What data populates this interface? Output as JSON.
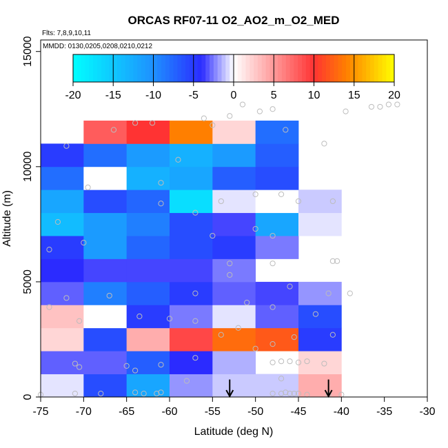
{
  "chart_data": {
    "type": "heatmap",
    "title": "ORCAS RF07-11 O2_AO2_m_O2_MED",
    "notes": [
      "Flts: 7,8,9,10,11",
      "MMDD: 0130,0205,0208,0210,0212"
    ],
    "xlabel": "Latitude (deg N)",
    "ylabel": "Altitude (m)",
    "xlim": [
      -75,
      -30
    ],
    "ylim": [
      0,
      15500
    ],
    "xticks": [
      -75,
      -70,
      -65,
      -60,
      -55,
      -50,
      -45,
      -40,
      -35,
      -30
    ],
    "yticks": [
      0,
      5000,
      10000,
      15000
    ],
    "color_range": [
      -20,
      20
    ],
    "colorbar_ticks": [
      -20,
      -15,
      -10,
      -5,
      0,
      5,
      10,
      15,
      20
    ],
    "colorbar_stops": [
      "#00ffff",
      "#1e90ff",
      "#2b2bff",
      "#ffffff",
      "#ff3333",
      "#ff7f00",
      "#ffff00"
    ],
    "lat_bins": [
      -75,
      -70,
      -65,
      -60,
      -55,
      -50,
      -45,
      -40
    ],
    "alt_bins": [
      0,
      1000,
      2000,
      3000,
      4000,
      5000,
      6000,
      7000,
      8000,
      9000,
      10000,
      11000,
      12000
    ],
    "cells": [
      {
        "lat": -75,
        "alt": 0,
        "value": -0.5
      },
      {
        "lat": -70,
        "alt": 0,
        "value": -6
      },
      {
        "lat": -65,
        "alt": 0,
        "value": -12
      },
      {
        "lat": -60,
        "alt": 0,
        "value": -2
      },
      {
        "lat": -55,
        "alt": 0,
        "value": -1
      },
      {
        "lat": -50,
        "alt": 0,
        "value": -1
      },
      {
        "lat": -45,
        "alt": 0,
        "value": 4
      },
      {
        "lat": -75,
        "alt": 1000,
        "value": -3
      },
      {
        "lat": -70,
        "alt": 1000,
        "value": -3
      },
      {
        "lat": -65,
        "alt": 1000,
        "value": -7
      },
      {
        "lat": -60,
        "alt": 1000,
        "value": -4
      },
      {
        "lat": -55,
        "alt": 1000,
        "value": -1.5
      },
      {
        "lat": -45,
        "alt": 1000,
        "value": 2
      },
      {
        "lat": -75,
        "alt": 2000,
        "value": 2
      },
      {
        "lat": -70,
        "alt": 2000,
        "value": -6
      },
      {
        "lat": -65,
        "alt": 2000,
        "value": 4
      },
      {
        "lat": -60,
        "alt": 2000,
        "value": 9
      },
      {
        "lat": -55,
        "alt": 2000,
        "value": 13
      },
      {
        "lat": -50,
        "alt": 2000,
        "value": 12
      },
      {
        "lat": -45,
        "alt": 2000,
        "value": -5
      },
      {
        "lat": -75,
        "alt": 3000,
        "value": 3
      },
      {
        "lat": -70,
        "alt": 3000,
        "value": 0
      },
      {
        "lat": -65,
        "alt": 3000,
        "value": -5
      },
      {
        "lat": -60,
        "alt": 3000,
        "value": -2.5
      },
      {
        "lat": -55,
        "alt": 3000,
        "value": -0.5
      },
      {
        "lat": -50,
        "alt": 3000,
        "value": -3
      },
      {
        "lat": -45,
        "alt": 3000,
        "value": -6
      },
      {
        "lat": -75,
        "alt": 4000,
        "value": -3
      },
      {
        "lat": -70,
        "alt": 4000,
        "value": -9
      },
      {
        "lat": -65,
        "alt": 4000,
        "value": -7
      },
      {
        "lat": -60,
        "alt": 4000,
        "value": -5
      },
      {
        "lat": -55,
        "alt": 4000,
        "value": -3
      },
      {
        "lat": -50,
        "alt": 4000,
        "value": -3.5
      },
      {
        "lat": -45,
        "alt": 4000,
        "value": -2
      },
      {
        "lat": -75,
        "alt": 5000,
        "value": -4
      },
      {
        "lat": -70,
        "alt": 5000,
        "value": -3.5
      },
      {
        "lat": -65,
        "alt": 5000,
        "value": -3.5
      },
      {
        "lat": -60,
        "alt": 5000,
        "value": -3.5
      },
      {
        "lat": -55,
        "alt": 5000,
        "value": -2.5
      },
      {
        "lat": -75,
        "alt": 6000,
        "value": -5
      },
      {
        "lat": -70,
        "alt": 6000,
        "value": -11
      },
      {
        "lat": -65,
        "alt": 6000,
        "value": -7.5
      },
      {
        "lat": -60,
        "alt": 6000,
        "value": -6
      },
      {
        "lat": -55,
        "alt": 6000,
        "value": -5
      },
      {
        "lat": -50,
        "alt": 6000,
        "value": -2.5
      },
      {
        "lat": -75,
        "alt": 7000,
        "value": -14
      },
      {
        "lat": -70,
        "alt": 7000,
        "value": -11
      },
      {
        "lat": -65,
        "alt": 7000,
        "value": -9
      },
      {
        "lat": -60,
        "alt": 7000,
        "value": -6
      },
      {
        "lat": -55,
        "alt": 7000,
        "value": -3.5
      },
      {
        "lat": -50,
        "alt": 7000,
        "value": -12
      },
      {
        "lat": -45,
        "alt": 7000,
        "value": -0.5
      },
      {
        "lat": -75,
        "alt": 8000,
        "value": -12
      },
      {
        "lat": -70,
        "alt": 8000,
        "value": -6
      },
      {
        "lat": -65,
        "alt": 8000,
        "value": -7.5
      },
      {
        "lat": -60,
        "alt": 8000,
        "value": -17
      },
      {
        "lat": -55,
        "alt": 8000,
        "value": -0.5
      },
      {
        "lat": -50,
        "alt": 8000,
        "value": 0
      },
      {
        "lat": -45,
        "alt": 8000,
        "value": -1
      },
      {
        "lat": -75,
        "alt": 9000,
        "value": -8
      },
      {
        "lat": -70,
        "alt": 9000,
        "value": 0
      },
      {
        "lat": -65,
        "alt": 9000,
        "value": -13
      },
      {
        "lat": -60,
        "alt": 9000,
        "value": -12
      },
      {
        "lat": -55,
        "alt": 9000,
        "value": -7
      },
      {
        "lat": -50,
        "alt": 9000,
        "value": -6
      },
      {
        "lat": -75,
        "alt": 10000,
        "value": -5
      },
      {
        "lat": -70,
        "alt": 10000,
        "value": -8
      },
      {
        "lat": -65,
        "alt": 10000,
        "value": -11
      },
      {
        "lat": -60,
        "alt": 10000,
        "value": -13
      },
      {
        "lat": -55,
        "alt": 10000,
        "value": -11
      },
      {
        "lat": -50,
        "alt": 10000,
        "value": -7
      },
      {
        "lat": -70,
        "alt": 11000,
        "value": 8
      },
      {
        "lat": -65,
        "alt": 11000,
        "value": 10
      },
      {
        "lat": -60,
        "alt": 11000,
        "value": 14
      },
      {
        "lat": -55,
        "alt": 11000,
        "value": 2
      },
      {
        "lat": -50,
        "alt": 11000,
        "value": -8
      }
    ],
    "arrows": [
      {
        "lat": -53,
        "alt": 700
      },
      {
        "lat": -41.5,
        "alt": 700
      }
    ],
    "points": [
      [
        -75,
        100
      ],
      [
        -71,
        150
      ],
      [
        -68,
        150
      ],
      [
        -64,
        200
      ],
      [
        -63,
        150
      ],
      [
        -61.5,
        150
      ],
      [
        -61,
        200
      ],
      [
        -58,
        700
      ],
      [
        -48,
        150
      ],
      [
        -47,
        150
      ],
      [
        -46.5,
        200
      ],
      [
        -46,
        150
      ],
      [
        -45.5,
        150
      ],
      [
        -45,
        150
      ],
      [
        -44,
        100
      ],
      [
        -41.5,
        100
      ],
      [
        -40,
        100
      ],
      [
        -47,
        800
      ],
      [
        -48,
        1500
      ],
      [
        -47,
        1550
      ],
      [
        -46,
        1550
      ],
      [
        -45,
        1500
      ],
      [
        -44,
        1550
      ],
      [
        -42,
        1450
      ],
      [
        -71,
        1450
      ],
      [
        -70.5,
        1300
      ],
      [
        -65,
        1350
      ],
      [
        -64,
        1150
      ],
      [
        -61,
        1400
      ],
      [
        -57,
        1700
      ],
      [
        -50,
        2100
      ],
      [
        -48,
        2300
      ],
      [
        -45.5,
        2600
      ],
      [
        -41,
        2700
      ],
      [
        -52,
        3000
      ],
      [
        -54,
        2700
      ],
      [
        -57,
        3300
      ],
      [
        -60,
        3400
      ],
      [
        -63.5,
        3500
      ],
      [
        -70.5,
        3300
      ],
      [
        -74,
        3900
      ],
      [
        -72,
        4300
      ],
      [
        -67,
        4400
      ],
      [
        -57,
        4500
      ],
      [
        -51,
        4100
      ],
      [
        -48,
        3900
      ],
      [
        -43,
        3600
      ],
      [
        -41.5,
        4500
      ],
      [
        -39,
        4500
      ],
      [
        -53,
        5300
      ],
      [
        -53,
        5800
      ],
      [
        -46,
        4800
      ],
      [
        -48,
        5800
      ],
      [
        -40.5,
        5900
      ],
      [
        -41,
        5900
      ],
      [
        -74,
        6400
      ],
      [
        -70,
        6700
      ],
      [
        -55,
        7000
      ],
      [
        -50,
        7300
      ],
      [
        -48,
        7000
      ],
      [
        -73,
        7600
      ],
      [
        -57,
        8000
      ],
      [
        -54,
        8500
      ],
      [
        -50,
        8800
      ],
      [
        -47,
        8800
      ],
      [
        -45,
        8500
      ],
      [
        -41,
        8500
      ],
      [
        -61,
        8400
      ],
      [
        -69.5,
        9100
      ],
      [
        -61,
        9300
      ],
      [
        -59,
        10300
      ],
      [
        -72,
        10900
      ],
      [
        -66.5,
        11600
      ],
      [
        -64,
        11900
      ],
      [
        -62,
        11900
      ],
      [
        -56,
        12100
      ],
      [
        -55,
        11800
      ],
      [
        -53,
        12200
      ],
      [
        -51.5,
        12700
      ],
      [
        -49.5,
        12400
      ],
      [
        -48,
        12500
      ],
      [
        -46.5,
        11600
      ],
      [
        -42,
        11000
      ],
      [
        -39.5,
        12400
      ],
      [
        -36.5,
        12600
      ],
      [
        -35.5,
        12600
      ],
      [
        -34.5,
        12700
      ],
      [
        -33.5,
        12700
      ]
    ]
  }
}
